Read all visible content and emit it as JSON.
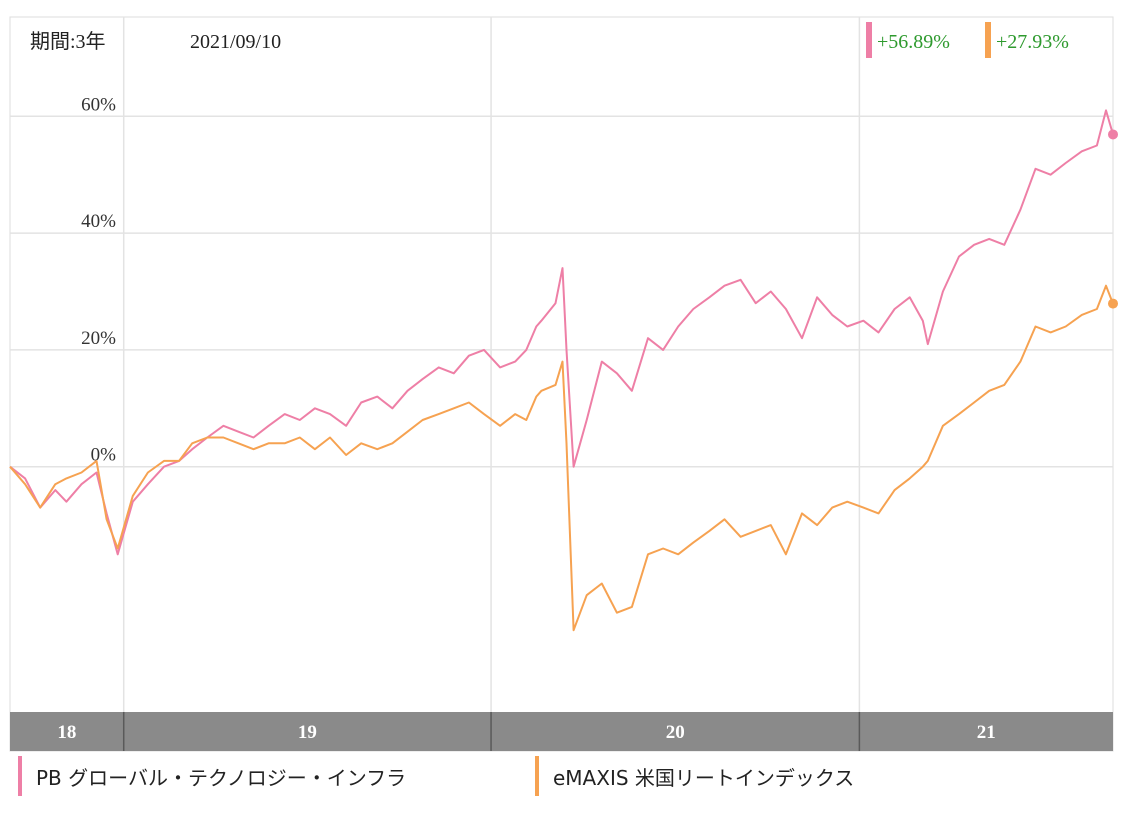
{
  "header": {
    "period_label": "期間:3年",
    "date": "2021/09/10",
    "returns": [
      {
        "value": "+56.89%",
        "color": "#ee7fa6"
      },
      {
        "value": "+27.93%",
        "color": "#f6a251"
      }
    ]
  },
  "chart_data": {
    "type": "line",
    "title": "",
    "xlabel": "",
    "ylabel": "",
    "x_range": [
      "2018-09",
      "2021-09"
    ],
    "ylim": [
      -42,
      77
    ],
    "y_ticks": [
      0,
      20,
      40,
      60
    ],
    "y_tick_labels": [
      "0%",
      "20%",
      "40%",
      "60%"
    ],
    "x_ticks": [
      {
        "label": "18",
        "start": "2018-09-10",
        "end": "2019-01-01"
      },
      {
        "label": "19",
        "start": "2019-01-01",
        "end": "2020-01-01"
      },
      {
        "label": "20",
        "start": "2020-01-01",
        "end": "2021-01-01"
      },
      {
        "label": "21",
        "start": "2021-01-01",
        "end": "2021-09-10"
      }
    ],
    "grid": true,
    "legend_position": "bottom",
    "series": [
      {
        "name": "PB グローバル・テクノロジー・インフラ",
        "color": "#ee7fa6",
        "points": [
          [
            "2018-09-10",
            0
          ],
          [
            "2018-09-25",
            -2
          ],
          [
            "2018-10-10",
            -7
          ],
          [
            "2018-10-25",
            -4
          ],
          [
            "2018-11-05",
            -6
          ],
          [
            "2018-11-20",
            -3
          ],
          [
            "2018-12-05",
            -1
          ],
          [
            "2018-12-15",
            -8
          ],
          [
            "2018-12-26",
            -15
          ],
          [
            "2019-01-10",
            -6
          ],
          [
            "2019-01-25",
            -3
          ],
          [
            "2019-02-10",
            0
          ],
          [
            "2019-02-25",
            1
          ],
          [
            "2019-03-10",
            3
          ],
          [
            "2019-03-25",
            5
          ],
          [
            "2019-04-10",
            7
          ],
          [
            "2019-04-25",
            6
          ],
          [
            "2019-05-10",
            5
          ],
          [
            "2019-05-25",
            7
          ],
          [
            "2019-06-10",
            9
          ],
          [
            "2019-06-25",
            8
          ],
          [
            "2019-07-10",
            10
          ],
          [
            "2019-07-25",
            9
          ],
          [
            "2019-08-10",
            7
          ],
          [
            "2019-08-25",
            11
          ],
          [
            "2019-09-10",
            12
          ],
          [
            "2019-09-25",
            10
          ],
          [
            "2019-10-10",
            13
          ],
          [
            "2019-10-25",
            15
          ],
          [
            "2019-11-10",
            17
          ],
          [
            "2019-11-25",
            16
          ],
          [
            "2019-12-10",
            19
          ],
          [
            "2019-12-25",
            20
          ],
          [
            "2020-01-10",
            17
          ],
          [
            "2020-01-25",
            18
          ],
          [
            "2020-02-05",
            20
          ],
          [
            "2020-02-15",
            24
          ],
          [
            "2020-02-20",
            25
          ],
          [
            "2020-03-05",
            28
          ],
          [
            "2020-03-12",
            34
          ],
          [
            "2020-03-16",
            20
          ],
          [
            "2020-03-23",
            0
          ],
          [
            "2020-04-05",
            8
          ],
          [
            "2020-04-20",
            18
          ],
          [
            "2020-05-05",
            16
          ],
          [
            "2020-05-20",
            13
          ],
          [
            "2020-06-05",
            22
          ],
          [
            "2020-06-20",
            20
          ],
          [
            "2020-07-05",
            24
          ],
          [
            "2020-07-20",
            27
          ],
          [
            "2020-08-05",
            29
          ],
          [
            "2020-08-20",
            31
          ],
          [
            "2020-09-05",
            32
          ],
          [
            "2020-09-20",
            28
          ],
          [
            "2020-10-05",
            30
          ],
          [
            "2020-10-20",
            27
          ],
          [
            "2020-11-05",
            22
          ],
          [
            "2020-11-20",
            29
          ],
          [
            "2020-12-05",
            26
          ],
          [
            "2020-12-20",
            24
          ],
          [
            "2021-01-05",
            25
          ],
          [
            "2021-01-20",
            23
          ],
          [
            "2021-02-05",
            27
          ],
          [
            "2021-02-20",
            29
          ],
          [
            "2021-03-05",
            25
          ],
          [
            "2021-03-10",
            21
          ],
          [
            "2021-03-25",
            30
          ],
          [
            "2021-04-10",
            36
          ],
          [
            "2021-04-25",
            38
          ],
          [
            "2021-05-10",
            39
          ],
          [
            "2021-05-25",
            38
          ],
          [
            "2021-06-10",
            44
          ],
          [
            "2021-06-25",
            51
          ],
          [
            "2021-07-10",
            50
          ],
          [
            "2021-07-25",
            52
          ],
          [
            "2021-08-10",
            54
          ],
          [
            "2021-08-25",
            55
          ],
          [
            "2021-09-03",
            61
          ],
          [
            "2021-09-10",
            56.89
          ]
        ]
      },
      {
        "name": "eMAXIS 米国リートインデックス",
        "color": "#f6a251",
        "points": [
          [
            "2018-09-10",
            0
          ],
          [
            "2018-09-25",
            -3
          ],
          [
            "2018-10-10",
            -7
          ],
          [
            "2018-10-25",
            -3
          ],
          [
            "2018-11-05",
            -2
          ],
          [
            "2018-11-20",
            -1
          ],
          [
            "2018-12-05",
            1
          ],
          [
            "2018-12-15",
            -9
          ],
          [
            "2018-12-26",
            -14
          ],
          [
            "2019-01-10",
            -5
          ],
          [
            "2019-01-25",
            -1
          ],
          [
            "2019-02-10",
            1
          ],
          [
            "2019-02-25",
            1
          ],
          [
            "2019-03-10",
            4
          ],
          [
            "2019-03-25",
            5
          ],
          [
            "2019-04-10",
            5
          ],
          [
            "2019-04-25",
            4
          ],
          [
            "2019-05-10",
            3
          ],
          [
            "2019-05-25",
            4
          ],
          [
            "2019-06-10",
            4
          ],
          [
            "2019-06-25",
            5
          ],
          [
            "2019-07-10",
            3
          ],
          [
            "2019-07-25",
            5
          ],
          [
            "2019-08-10",
            2
          ],
          [
            "2019-08-25",
            4
          ],
          [
            "2019-09-10",
            3
          ],
          [
            "2019-09-25",
            4
          ],
          [
            "2019-10-10",
            6
          ],
          [
            "2019-10-25",
            8
          ],
          [
            "2019-11-10",
            9
          ],
          [
            "2019-11-25",
            10
          ],
          [
            "2019-12-10",
            11
          ],
          [
            "2019-12-25",
            9
          ],
          [
            "2020-01-10",
            7
          ],
          [
            "2020-01-25",
            9
          ],
          [
            "2020-02-05",
            8
          ],
          [
            "2020-02-15",
            12
          ],
          [
            "2020-02-20",
            13
          ],
          [
            "2020-03-05",
            14
          ],
          [
            "2020-03-12",
            18
          ],
          [
            "2020-03-16",
            4
          ],
          [
            "2020-03-23",
            -28
          ],
          [
            "2020-04-05",
            -22
          ],
          [
            "2020-04-20",
            -20
          ],
          [
            "2020-05-05",
            -25
          ],
          [
            "2020-05-20",
            -24
          ],
          [
            "2020-06-05",
            -15
          ],
          [
            "2020-06-20",
            -14
          ],
          [
            "2020-07-05",
            -15
          ],
          [
            "2020-07-20",
            -13
          ],
          [
            "2020-08-05",
            -11
          ],
          [
            "2020-08-20",
            -9
          ],
          [
            "2020-09-05",
            -12
          ],
          [
            "2020-09-20",
            -11
          ],
          [
            "2020-10-05",
            -10
          ],
          [
            "2020-10-20",
            -15
          ],
          [
            "2020-11-05",
            -8
          ],
          [
            "2020-11-20",
            -10
          ],
          [
            "2020-12-05",
            -7
          ],
          [
            "2020-12-20",
            -6
          ],
          [
            "2021-01-05",
            -7
          ],
          [
            "2021-01-20",
            -8
          ],
          [
            "2021-02-05",
            -4
          ],
          [
            "2021-02-20",
            -2
          ],
          [
            "2021-03-05",
            0
          ],
          [
            "2021-03-10",
            1
          ],
          [
            "2021-03-25",
            7
          ],
          [
            "2021-04-10",
            9
          ],
          [
            "2021-04-25",
            11
          ],
          [
            "2021-05-10",
            13
          ],
          [
            "2021-05-25",
            14
          ],
          [
            "2021-06-10",
            18
          ],
          [
            "2021-06-25",
            24
          ],
          [
            "2021-07-10",
            23
          ],
          [
            "2021-07-25",
            24
          ],
          [
            "2021-08-10",
            26
          ],
          [
            "2021-08-25",
            27
          ],
          [
            "2021-09-03",
            31
          ],
          [
            "2021-09-10",
            27.93
          ]
        ]
      }
    ]
  }
}
